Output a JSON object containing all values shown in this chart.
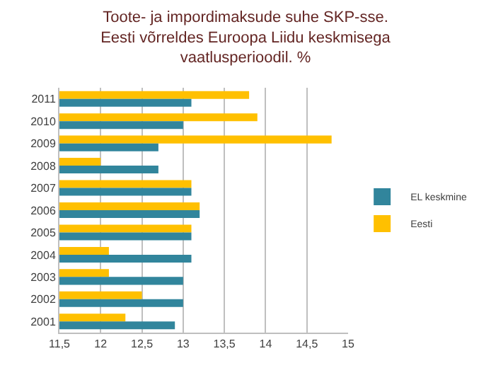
{
  "chart_data": {
    "type": "bar",
    "orientation": "horizontal",
    "title": "Toote- ja impordimaksude suhe SKP-sse.\nEesti võrreldes Euroopa Liidu keskmisega\nvaatlusperioodil. %",
    "categories": [
      "2011",
      "2010",
      "2009",
      "2008",
      "2007",
      "2006",
      "2005",
      "2004",
      "2003",
      "2002",
      "2001"
    ],
    "series": [
      {
        "name": "EL keskmine",
        "color": "#31859c",
        "values": [
          13.1,
          13.0,
          12.7,
          12.7,
          13.1,
          13.2,
          13.1,
          13.1,
          13.0,
          13.0,
          12.9
        ]
      },
      {
        "name": "Eesti",
        "color": "#ffc000",
        "values": [
          13.8,
          13.9,
          14.8,
          12.0,
          13.1,
          13.2,
          13.1,
          12.1,
          12.1,
          12.5,
          12.3
        ]
      }
    ],
    "xlim": [
      11.5,
      15
    ],
    "xticks": [
      {
        "value": 11.5,
        "label": "11,5"
      },
      12,
      {
        "value": 12.5,
        "label": "12,5"
      },
      13,
      {
        "value": 13.5,
        "label": "13,5"
      },
      14,
      {
        "value": 14.5,
        "label": "14,5"
      },
      15
    ],
    "grid": "x",
    "legend": "right"
  }
}
